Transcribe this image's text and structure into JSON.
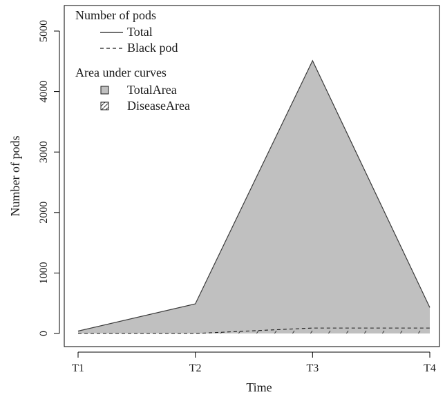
{
  "chart_data": {
    "type": "area",
    "xlabel": "Time",
    "ylabel": "Number of pods",
    "categories": [
      "T1",
      "T2",
      "T3",
      "T4"
    ],
    "ylim": [
      -250,
      5400
    ],
    "yticks": [
      0,
      1000,
      2000,
      3000,
      4000,
      5000
    ],
    "grid": false,
    "legend_position": "top-left",
    "series": [
      {
        "name": "Total",
        "line_style": "solid",
        "values": [
          40,
          490,
          4510,
          430
        ]
      },
      {
        "name": "Black pod",
        "line_style": "dashed",
        "values": [
          0,
          0,
          90,
          90
        ]
      }
    ],
    "areas": [
      {
        "name": "TotalArea",
        "fill": "#c0c0c0",
        "under_series": "Total"
      },
      {
        "name": "DiseaseArea",
        "fill": "hatched",
        "under_series": "Black pod"
      }
    ],
    "legend": {
      "groups": [
        {
          "title": "Number of pods",
          "items": [
            {
              "label": "Total",
              "symbol": "solid-line"
            },
            {
              "label": "Black pod",
              "symbol": "dashed-line"
            }
          ]
        },
        {
          "title": "Area under curves",
          "items": [
            {
              "label": "TotalArea",
              "symbol": "grey-box"
            },
            {
              "label": "DiseaseArea",
              "symbol": "hatched-box"
            }
          ]
        }
      ]
    },
    "colors": {
      "area_fill": "#c0c0c0",
      "line": "#3a3a3a",
      "axis": "#000000"
    }
  }
}
